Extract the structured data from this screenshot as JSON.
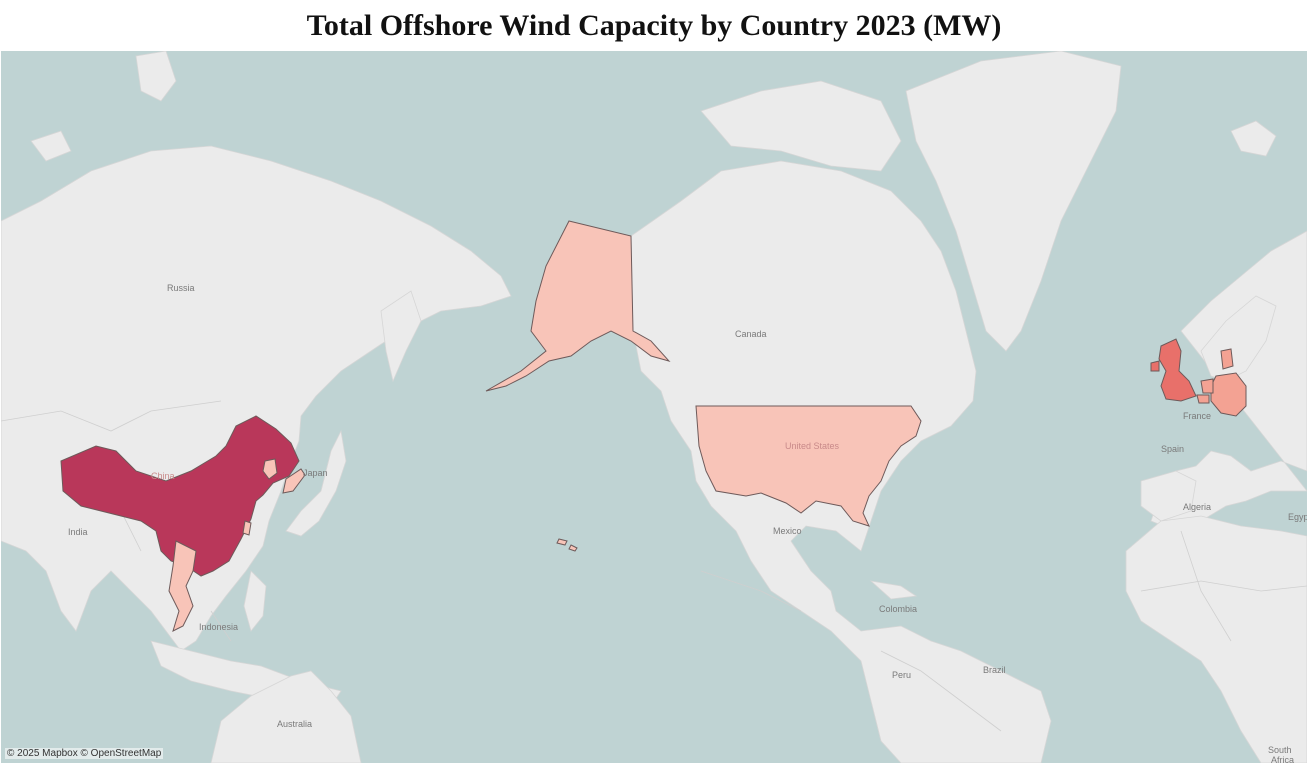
{
  "title": "Total Offshore Wind Capacity by Country 2023 (MW)",
  "attribution": "© 2025 Mapbox © OpenStreetMap",
  "colors": {
    "water": "#bfd3d3",
    "land": "#ebebeb",
    "china": "#b9375a",
    "united_kingdom": "#e8706a",
    "germany": "#f3a293",
    "netherlands": "#f3a293",
    "denmark": "#f3a293",
    "belgium": "#f3a293",
    "united_states": "#f8c4b8",
    "vietnam": "#f8c4b8",
    "taiwan": "#f8c4b8",
    "south_korea": "#f8c4b8",
    "japan": "#f8c4b8"
  },
  "place_labels": {
    "russia": "Russia",
    "canada": "Canada",
    "united_states": "United States",
    "china": "China",
    "japan": "Japan",
    "india": "India",
    "indonesia": "Indonesia",
    "australia": "Australia",
    "mexico": "Mexico",
    "colombia": "Colombia",
    "peru": "Peru",
    "brazil": "Brazil",
    "france": "France",
    "spain": "Spain",
    "algeria": "Algeria",
    "egypt": "Egyp",
    "south_africa_line1": "South",
    "south_africa_line2": "Africa"
  }
}
